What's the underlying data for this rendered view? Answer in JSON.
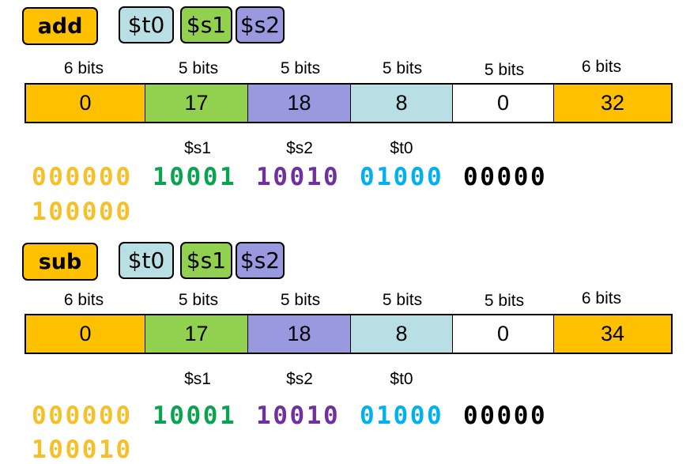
{
  "colors": {
    "opcode": "#ffc000",
    "s1": "#92d050",
    "s2": "#9999e0",
    "t0": "#b8e0e4",
    "shamt": "#ffffff",
    "funct": "#ffc000",
    "bin_opcode": "#f5c02a",
    "bin_s1": "#0aa350",
    "bin_s2": "#7030a0",
    "bin_t0": "#00b0f0",
    "bin_shamt": "#000000"
  },
  "bit_labels": [
    "6 bits",
    "5 bits",
    "5 bits",
    "5 bits",
    "5 bits",
    "6 bits"
  ],
  "instructions": [
    {
      "mnemonic": "add",
      "operands": [
        "$t0",
        "$s1",
        "$s2"
      ],
      "fields": [
        "0",
        "17",
        "18",
        "8",
        "0",
        "32"
      ],
      "register_labels": [
        "$s1",
        "$s2",
        "$t0"
      ],
      "binary": [
        "000000",
        "10001",
        "10010",
        "01000",
        "00000",
        "100000"
      ]
    },
    {
      "mnemonic": "sub",
      "operands": [
        "$t0",
        "$s1",
        "$s2"
      ],
      "fields": [
        "0",
        "17",
        "18",
        "8",
        "0",
        "34"
      ],
      "register_labels": [
        "$s1",
        "$s2",
        "$t0"
      ],
      "binary": [
        "000000",
        "10001",
        "10010",
        "01000",
        "00000",
        "100010"
      ]
    }
  ]
}
